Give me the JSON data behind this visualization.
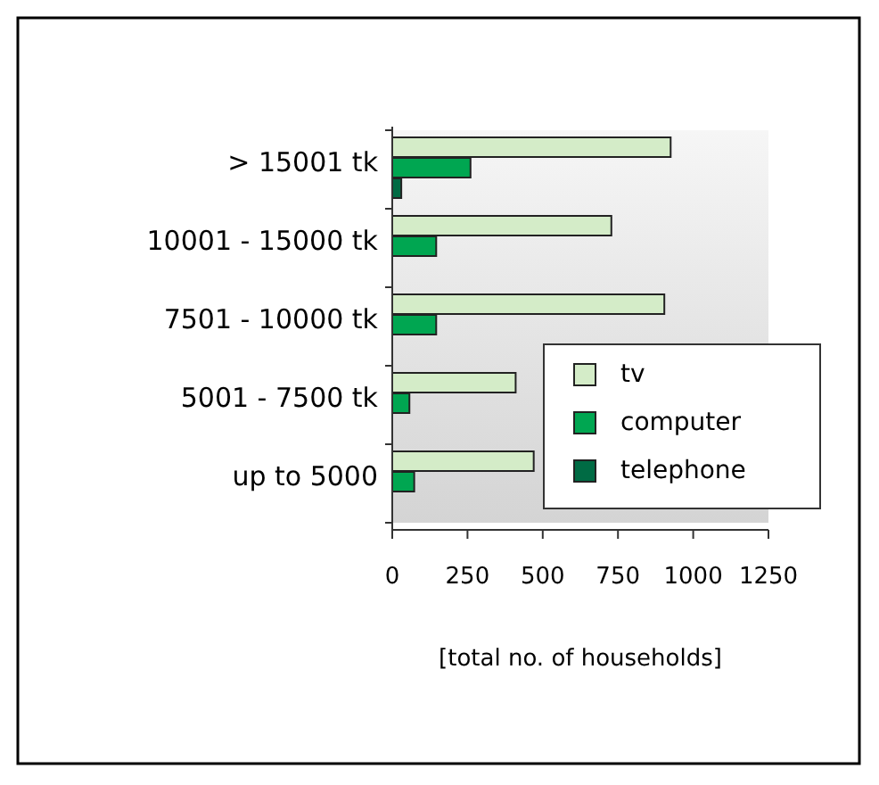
{
  "chart_data": {
    "type": "bar",
    "orientation": "horizontal",
    "xlabel": "[total no. of households]",
    "categories": [
      "> 15001 tk",
      "10001 - 15000 tk",
      "7501 - 10000 tk",
      "5001 - 7500 tk",
      "up to 5000"
    ],
    "series": [
      {
        "name": "tv",
        "color": "#d4ecc8",
        "values": [
          925,
          728,
          904,
          410,
          470
        ]
      },
      {
        "name": "computer",
        "color": "#00a651",
        "values": [
          260,
          146,
          146,
          57,
          73
        ]
      },
      {
        "name": "telephone",
        "color": "#006b44",
        "values": [
          30,
          0,
          0,
          0,
          0
        ]
      }
    ],
    "xlim": [
      0,
      1250
    ],
    "xticks": [
      0,
      250,
      500,
      750,
      1000,
      1250
    ],
    "grid": false,
    "legend": "bottom right"
  }
}
